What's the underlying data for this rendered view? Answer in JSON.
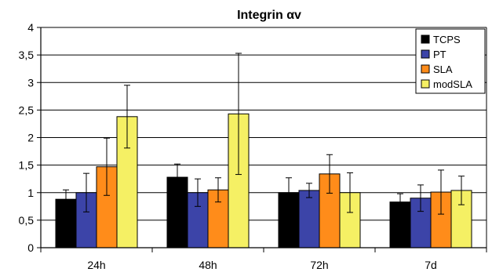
{
  "chart_data": {
    "type": "bar",
    "title": "Integrin αv",
    "xlabel": "",
    "ylabel": "",
    "categories": [
      "24h",
      "48h",
      "72h",
      "7d"
    ],
    "ylim": [
      0,
      4
    ],
    "yticks": [
      "0",
      "0,5",
      "1",
      "1,5",
      "2",
      "2,5",
      "3",
      "3,5",
      "4"
    ],
    "ytick_values": [
      0,
      0.5,
      1,
      1.5,
      2,
      2.5,
      3,
      3.5,
      4
    ],
    "grid": true,
    "legend_position": "top-right",
    "series": [
      {
        "name": "TCPS",
        "color": "#000000",
        "values": [
          0.88,
          1.28,
          1.0,
          0.83
        ],
        "errors": [
          0.17,
          0.24,
          0.27,
          0.15
        ]
      },
      {
        "name": "PT",
        "color": "#3c44a8",
        "values": [
          1.0,
          1.0,
          1.04,
          0.9
        ],
        "errors": [
          0.35,
          0.25,
          0.13,
          0.24
        ]
      },
      {
        "name": "SLA",
        "color": "#ff8c1a",
        "values": [
          1.47,
          1.05,
          1.34,
          1.01
        ],
        "errors": [
          0.52,
          0.22,
          0.35,
          0.4
        ]
      },
      {
        "name": "modSLA",
        "color": "#f5f064",
        "values": [
          2.38,
          2.43,
          1.0,
          1.04
        ],
        "errors": [
          0.57,
          1.1,
          0.36,
          0.26
        ]
      }
    ]
  }
}
